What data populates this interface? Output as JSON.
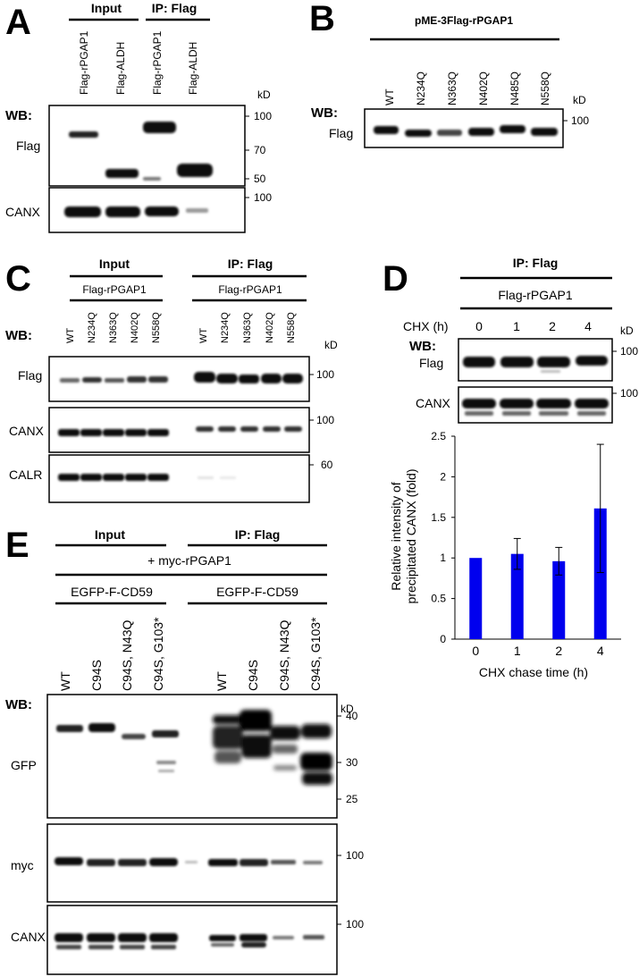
{
  "panels": {
    "A": {
      "letter": "A",
      "groups": [
        "Input",
        "IP: Flag"
      ],
      "lanes": [
        "Flag-rPGAP1",
        "Flag-ALDH",
        "Flag-rPGAP1",
        "Flag-ALDH"
      ],
      "wb_label": "WB:",
      "kd_label": "kD",
      "blots": [
        "Flag",
        "CANX"
      ],
      "mw": [
        "100",
        "70",
        "50",
        "100"
      ]
    },
    "B": {
      "letter": "B",
      "construct": "pME-3Flag-rPGAP1",
      "lanes": [
        "WT",
        "N234Q",
        "N363Q",
        "N402Q",
        "N485Q",
        "N558Q"
      ],
      "wb_label": "WB:",
      "kd_label": "kD",
      "blots": [
        "Flag"
      ],
      "mw": [
        "100"
      ]
    },
    "C": {
      "letter": "C",
      "groups": [
        "Input",
        "IP: Flag"
      ],
      "constructs": [
        "Flag-rPGAP1",
        "Flag-rPGAP1"
      ],
      "lanes": [
        "WT",
        "N234Q",
        "N363Q",
        "N402Q",
        "N558Q",
        "WT",
        "N234Q",
        "N363Q",
        "N402Q",
        "N558Q"
      ],
      "wb_label": "WB:",
      "kd_label": "kD",
      "blots": [
        "Flag",
        "CANX",
        "CALR"
      ],
      "mw": [
        "100",
        "100",
        "60"
      ]
    },
    "D": {
      "letter": "D",
      "group": "IP: Flag",
      "construct": "Flag-rPGAP1",
      "chx_label": "CHX (h)",
      "timepoints": [
        "0",
        "1",
        "2",
        "4"
      ],
      "wb_label": "WB:",
      "kd_label": "kD",
      "blots": [
        "Flag",
        "CANX"
      ],
      "mw": [
        "100",
        "100"
      ]
    },
    "E": {
      "letter": "E",
      "groups": [
        "Input",
        "IP: Flag"
      ],
      "cotransfection": "+ myc-rPGAP1",
      "constructs": [
        "EGFP-F-CD59",
        "EGFP-F-CD59"
      ],
      "lanes": [
        "WT",
        "C94S",
        "C94S, N43Q",
        "C94S, G103*",
        "WT",
        "C94S",
        "C94S, N43Q",
        "C94S, G103*"
      ],
      "wb_label": "WB:",
      "kd_label": "kD",
      "blots": [
        "GFP",
        "myc",
        "CANX"
      ],
      "mw": [
        "40",
        "30",
        "25",
        "100",
        "100"
      ]
    }
  },
  "chart_data": {
    "type": "bar",
    "categories": [
      "0",
      "1",
      "2",
      "4"
    ],
    "values": [
      1.0,
      1.05,
      0.96,
      1.61
    ],
    "errors": [
      0.0,
      0.19,
      0.17,
      0.79
    ],
    "title": "",
    "xlabel": "CHX chase time (h)",
    "ylabel_lines": [
      "Relative intensity of",
      "precipitated CANX (fold)"
    ],
    "ylim": [
      0,
      2.5
    ],
    "yticks": [
      "0",
      "0.5",
      "1",
      "1.5",
      "2",
      "2.5"
    ],
    "grid": false,
    "bar_color": "#0000ee"
  }
}
